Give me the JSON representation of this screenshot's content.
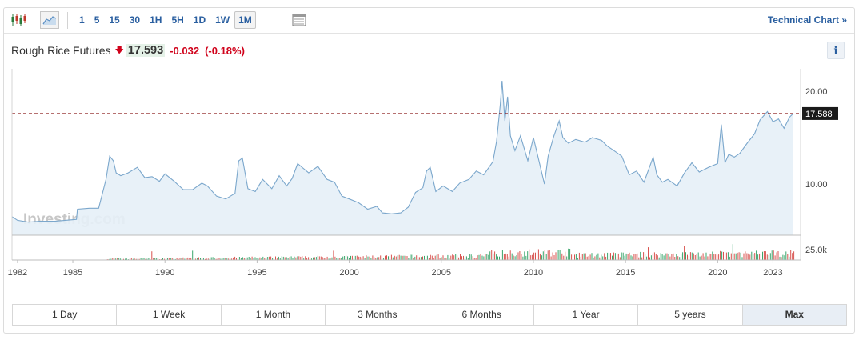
{
  "toolbar": {
    "intervals": [
      "1",
      "5",
      "15",
      "30",
      "1H",
      "5H",
      "1D",
      "1W",
      "1M"
    ],
    "active_interval": "1M",
    "technical_link": "Technical Chart »"
  },
  "quote": {
    "name": "Rough Rice Futures",
    "price": "17.593",
    "change": "-0.032",
    "change_pct": "(-0.18%)",
    "info_label": "i"
  },
  "ranges": [
    "1 Day",
    "1 Week",
    "1 Month",
    "3 Months",
    "6 Months",
    "1 Year",
    "5 years",
    "Max"
  ],
  "active_range": "Max",
  "colors": {
    "line": "#7ba7cc",
    "area": "#e6eff7",
    "ref_line": "#8b1a1a",
    "up_bar": "#3aa66b",
    "down_bar": "#d9534f"
  },
  "chart_data": {
    "type": "area",
    "watermark": "Investing.com",
    "ref_label": "17.588",
    "ref_value": 17.588,
    "xlim": [
      1981.7,
      2024.5
    ],
    "ylim": [
      4.5,
      22.4
    ],
    "y_ticks": [
      {
        "value": 20,
        "label": "20.00"
      },
      {
        "value": 10,
        "label": "10.00"
      }
    ],
    "x_ticks": [
      {
        "value": 1982,
        "label": "1982"
      },
      {
        "value": 1985,
        "label": "1985"
      },
      {
        "value": 1990,
        "label": "1990"
      },
      {
        "value": 1995,
        "label": "1995"
      },
      {
        "value": 2000,
        "label": "2000"
      },
      {
        "value": 2005,
        "label": "2005"
      },
      {
        "value": 2010,
        "label": "2010"
      },
      {
        "value": 2015,
        "label": "2015"
      },
      {
        "value": 2020,
        "label": "2020"
      },
      {
        "value": 2023,
        "label": "2023"
      }
    ],
    "volume_label": "25.0k",
    "volume_ylim": [
      0,
      25000
    ],
    "series": [
      {
        "x": [
          1981.7,
          1982.0,
          1982.6,
          1983.2,
          1984.0,
          1984.6,
          1985.2,
          1985.25,
          1985.9,
          1986.4,
          1986.8,
          1987.0,
          1987.2,
          1987.35,
          1987.6,
          1988.0,
          1988.5,
          1988.9,
          1989.3,
          1989.7,
          1990.0,
          1990.5,
          1991.0,
          1991.5,
          1992.0,
          1992.3,
          1992.8,
          1993.3,
          1993.8,
          1994.0,
          1994.2,
          1994.5,
          1994.9,
          1995.3,
          1995.8,
          1996.2,
          1996.6,
          1996.9,
          1997.2,
          1997.8,
          1998.3,
          1998.8,
          1999.2,
          1999.6,
          2000.0,
          2000.5,
          2001.0,
          2001.5,
          2001.8,
          2002.3,
          2002.8,
          2003.2,
          2003.6,
          2004.0,
          2004.2,
          2004.4,
          2004.7,
          2005.1,
          2005.6,
          2006.0,
          2006.5,
          2006.9,
          2007.3,
          2007.8,
          2008.0,
          2008.2,
          2008.3,
          2008.45,
          2008.6,
          2008.75,
          2009.0,
          2009.3,
          2009.7,
          2010.0,
          2010.3,
          2010.6,
          2010.8,
          2011.1,
          2011.4,
          2011.6,
          2011.9,
          2012.3,
          2012.8,
          2013.2,
          2013.7,
          2014.0,
          2014.3,
          2014.8,
          2015.2,
          2015.6,
          2016.0,
          2016.5,
          2016.7,
          2017.0,
          2017.3,
          2017.8,
          2018.2,
          2018.6,
          2019.0,
          2019.5,
          2020.0,
          2020.2,
          2020.4,
          2020.6,
          2020.9,
          2021.2,
          2021.6,
          2022.0,
          2022.3,
          2022.7,
          2023.0,
          2023.3,
          2023.6,
          2023.9,
          2024.1
        ],
        "y": [
          6.5,
          6.1,
          5.9,
          6.0,
          6.0,
          6.1,
          6.2,
          7.3,
          7.4,
          7.4,
          10.5,
          13.0,
          12.5,
          11.2,
          10.9,
          11.2,
          11.8,
          10.7,
          10.8,
          10.3,
          11.1,
          10.3,
          9.4,
          9.4,
          10.1,
          9.8,
          8.7,
          8.4,
          9.0,
          12.5,
          12.8,
          9.5,
          9.2,
          10.5,
          9.5,
          10.9,
          9.8,
          10.6,
          12.2,
          11.2,
          11.9,
          10.5,
          10.2,
          8.7,
          8.4,
          8.0,
          7.3,
          7.6,
          6.9,
          6.8,
          6.9,
          7.5,
          9.1,
          9.6,
          11.4,
          11.8,
          9.2,
          9.8,
          9.2,
          10.1,
          10.5,
          11.4,
          11.0,
          12.4,
          14.6,
          18.5,
          21.1,
          16.8,
          19.4,
          15.2,
          13.6,
          15.2,
          12.5,
          15.0,
          12.5,
          10.0,
          13.0,
          15.1,
          16.8,
          15.0,
          14.4,
          14.8,
          14.5,
          15.0,
          14.7,
          14.1,
          13.7,
          13.0,
          11.0,
          11.4,
          10.2,
          12.9,
          11.0,
          10.2,
          10.5,
          9.8,
          11.2,
          12.3,
          11.3,
          11.8,
          12.2,
          16.4,
          12.3,
          13.2,
          12.9,
          13.3,
          14.4,
          15.4,
          16.9,
          17.8,
          16.7,
          17.0,
          16.0,
          17.2,
          17.6
        ]
      }
    ]
  }
}
